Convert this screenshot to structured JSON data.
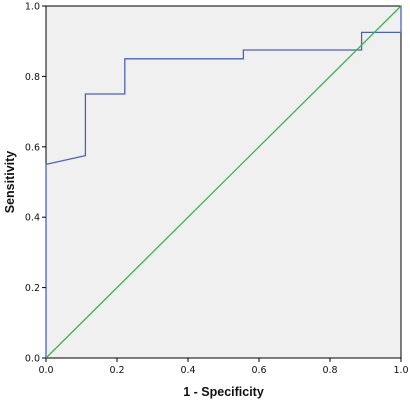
{
  "chart_data": {
    "type": "line",
    "title": "",
    "xlabel": "1 - Specificity",
    "ylabel": "Sensitivity",
    "xlim": [
      0,
      1
    ],
    "ylim": [
      0,
      1
    ],
    "x_ticks": [
      "0.0",
      "0.2",
      "0.4",
      "0.6",
      "0.8",
      "1.0"
    ],
    "y_ticks": [
      "0.0",
      "0.2",
      "0.4",
      "0.6",
      "0.8",
      "1.0"
    ],
    "grid": false,
    "background_color": "#f0f0f0",
    "series": [
      {
        "color": "#4a64b4",
        "step": true,
        "points": [
          [
            0.0,
            0.0
          ],
          [
            0.0,
            0.55
          ],
          [
            0.111,
            0.575
          ],
          [
            0.111,
            0.75
          ],
          [
            0.222,
            0.75
          ],
          [
            0.222,
            0.85
          ],
          [
            0.556,
            0.85
          ],
          [
            0.556,
            0.875
          ],
          [
            0.889,
            0.875
          ],
          [
            0.889,
            0.925
          ],
          [
            1.0,
            0.925
          ],
          [
            1.0,
            1.0
          ]
        ]
      },
      {
        "color": "#3cb44b",
        "step": false,
        "points": [
          [
            0.0,
            0.0
          ],
          [
            1.0,
            1.0
          ]
        ]
      }
    ]
  }
}
